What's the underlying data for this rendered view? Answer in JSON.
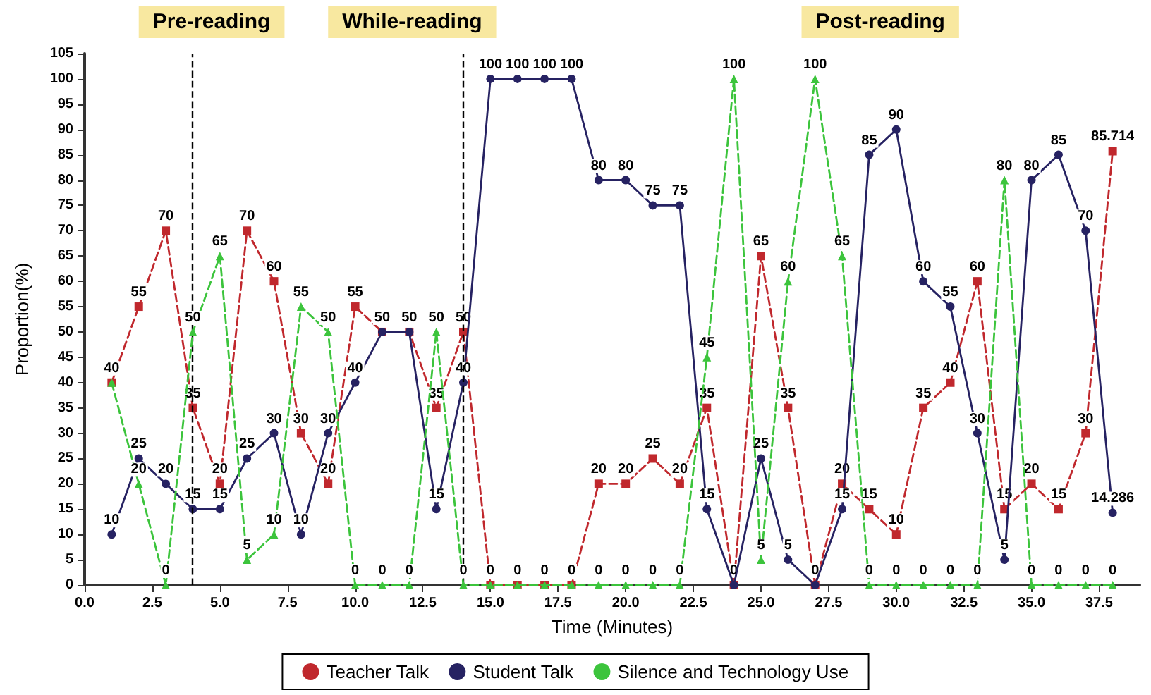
{
  "chart_data": {
    "type": "line",
    "xlabel": "Time (Minutes)",
    "ylabel": "Proportion(%)",
    "x": [
      1,
      2,
      3,
      4,
      5,
      6,
      7,
      8,
      9,
      10,
      11,
      12,
      13,
      14,
      15,
      16,
      17,
      18,
      19,
      20,
      21,
      22,
      23,
      24,
      25,
      26,
      27,
      28,
      29,
      30,
      31,
      32,
      33,
      34,
      35,
      36,
      37,
      38
    ],
    "series": [
      {
        "name": "Teacher Talk",
        "color": "#c0282d",
        "marker": "square",
        "line_style": "dashed",
        "values": [
          40,
          55,
          70,
          35,
          20,
          70,
          60,
          30,
          20,
          55,
          50,
          50,
          35,
          50,
          0,
          0,
          0,
          0,
          20,
          20,
          25,
          20,
          35,
          0,
          65,
          35,
          0,
          20,
          15,
          10,
          35,
          40,
          60,
          15,
          20,
          15,
          30,
          85.714
        ],
        "value_labels": [
          "40",
          "55",
          "70",
          "35",
          "20",
          "70",
          "60",
          "30",
          "20",
          "55",
          "50",
          "50",
          "35",
          "50",
          "0",
          "0",
          "0",
          "0",
          "20",
          "20",
          "25",
          "20",
          "35",
          "0",
          "65",
          "35",
          "0",
          "20",
          "15",
          "10",
          "35",
          "40",
          "60",
          "15",
          "20",
          "15",
          "30",
          "85.714"
        ]
      },
      {
        "name": "Student Talk",
        "color": "#262262",
        "marker": "circle",
        "line_style": "solid",
        "values": [
          10,
          25,
          20,
          15,
          15,
          25,
          30,
          10,
          30,
          40,
          50,
          50,
          15,
          40,
          100,
          100,
          100,
          100,
          80,
          80,
          75,
          75,
          15,
          0,
          25,
          5,
          0,
          15,
          85,
          90,
          60,
          55,
          30,
          5,
          80,
          85,
          70,
          14.286
        ],
        "value_labels": [
          "10",
          "25",
          "20",
          "15",
          "15",
          "25",
          "30",
          "10",
          "30",
          "40",
          null,
          null,
          "15",
          "40",
          "100",
          "100",
          "100",
          "100",
          "80",
          "80",
          "75",
          "75",
          "15",
          null,
          "25",
          "5",
          null,
          "15",
          "85",
          "90",
          "60",
          "55",
          "30",
          "5",
          "80",
          "85",
          "70",
          "14.286"
        ]
      },
      {
        "name": "Silence and Technology Use",
        "color": "#3cc43c",
        "marker": "triangle",
        "line_style": "dashed",
        "values": [
          40,
          20,
          0,
          50,
          65,
          5,
          10,
          55,
          50,
          0,
          0,
          0,
          50,
          0,
          0,
          0,
          0,
          0,
          0,
          0,
          0,
          0,
          45,
          100,
          5,
          60,
          100,
          65,
          0,
          0,
          0,
          0,
          0,
          80,
          0,
          0,
          0,
          0
        ],
        "value_labels": [
          null,
          "20",
          "0",
          "50",
          "65",
          "5",
          "10",
          "55",
          "50",
          "0",
          "0",
          "0",
          "50",
          "0",
          null,
          null,
          null,
          null,
          "0",
          "0",
          "0",
          "0",
          "45",
          "100",
          "5",
          "60",
          "100",
          "65",
          "0",
          "0",
          "0",
          "0",
          "0",
          "80",
          "0",
          "0",
          "0",
          "0"
        ]
      }
    ],
    "xlim": [
      0,
      39
    ],
    "xticks": [
      {
        "value": 0,
        "label": "0.0"
      },
      {
        "value": 2.5,
        "label": "2.5"
      },
      {
        "value": 5,
        "label": "5.0"
      },
      {
        "value": 7.5,
        "label": "7.5"
      },
      {
        "value": 10,
        "label": "10.0"
      },
      {
        "value": 12.5,
        "label": "12.5"
      },
      {
        "value": 15,
        "label": "15.0"
      },
      {
        "value": 17.5,
        "label": "17.5"
      },
      {
        "value": 20,
        "label": "20.0"
      },
      {
        "value": 22.5,
        "label": "22.5"
      },
      {
        "value": 25,
        "label": "25.0"
      },
      {
        "value": 27.5,
        "label": "27.5"
      },
      {
        "value": 30,
        "label": "30.0"
      },
      {
        "value": 32.5,
        "label": "32.5"
      },
      {
        "value": 35,
        "label": "35.0"
      },
      {
        "value": 37.5,
        "label": "37.5"
      }
    ],
    "ylim": [
      0,
      105
    ],
    "yticks": [
      0,
      5,
      10,
      15,
      20,
      25,
      30,
      35,
      40,
      45,
      50,
      55,
      60,
      65,
      70,
      75,
      80,
      85,
      90,
      95,
      100,
      105
    ],
    "ref_lines": [
      {
        "axis": "x",
        "value": 4,
        "line_style": "dashed",
        "color": "#000000"
      },
      {
        "axis": "x",
        "value": 14,
        "line_style": "dashed",
        "color": "#000000"
      }
    ],
    "annotations": [
      "Pre-reading",
      "While-reading",
      "Post-reading"
    ],
    "grid": false,
    "legend": "bottom"
  }
}
